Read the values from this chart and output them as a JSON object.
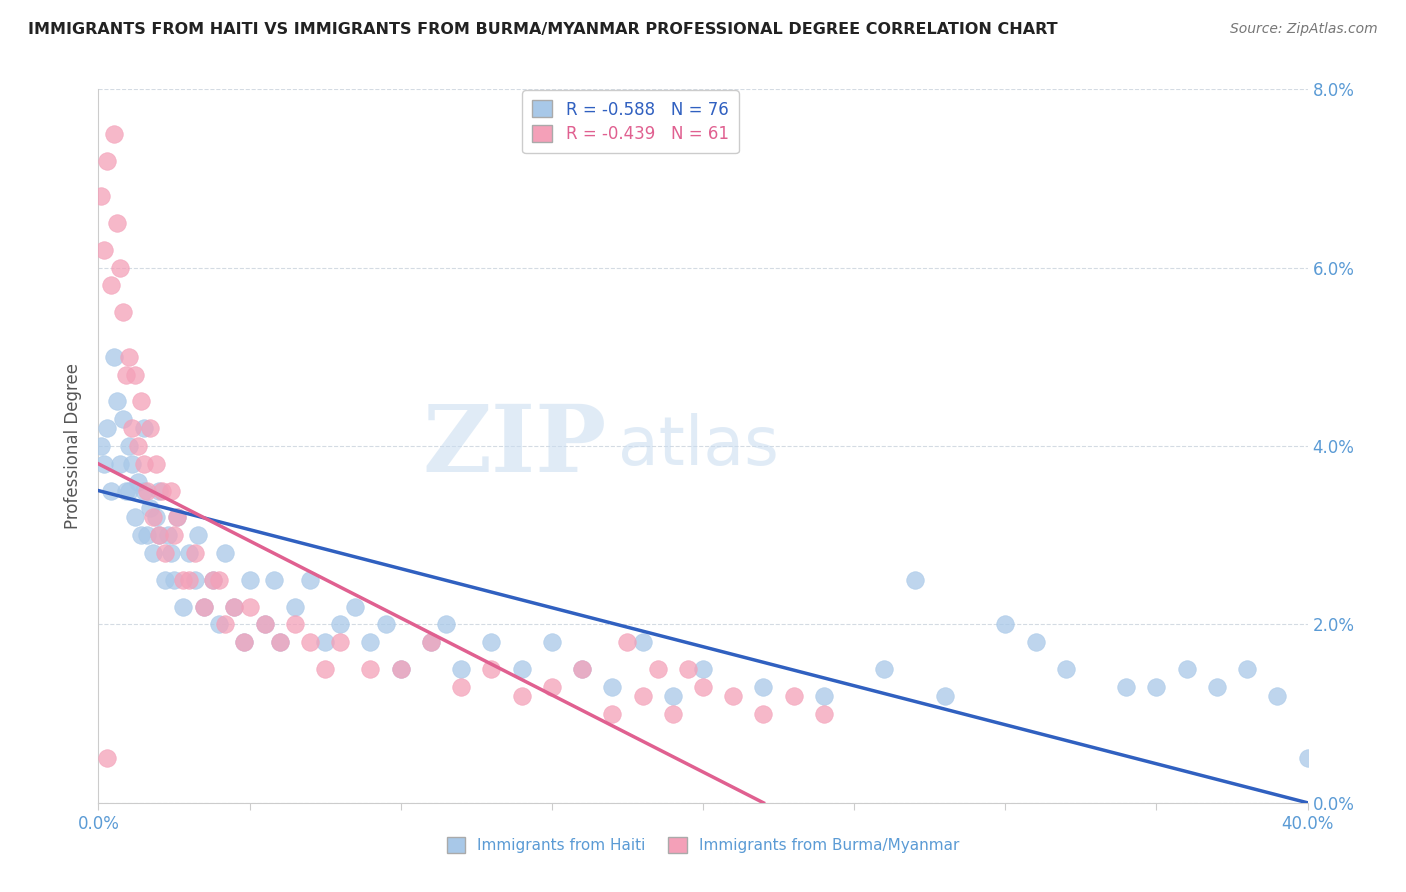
{
  "title": "IMMIGRANTS FROM HAITI VS IMMIGRANTS FROM BURMA/MYANMAR PROFESSIONAL DEGREE CORRELATION CHART",
  "source": "Source: ZipAtlas.com",
  "ylabel": "Professional Degree",
  "legend_haiti": "Immigrants from Haiti",
  "legend_burma": "Immigrants from Burma/Myanmar",
  "haiti_R": -0.588,
  "haiti_N": 76,
  "burma_R": -0.439,
  "burma_N": 61,
  "xlim": [
    0.0,
    0.4
  ],
  "ylim": [
    0.0,
    0.08
  ],
  "haiti_color": "#A8C8E8",
  "burma_color": "#F4A0B8",
  "haiti_line_color": "#3060C0",
  "burma_line_color": "#E06090",
  "background_color": "#FFFFFF",
  "watermark_zip": "ZIP",
  "watermark_atlas": "atlas",
  "haiti_x": [
    0.001,
    0.002,
    0.003,
    0.004,
    0.005,
    0.006,
    0.007,
    0.008,
    0.009,
    0.01,
    0.01,
    0.011,
    0.012,
    0.013,
    0.014,
    0.015,
    0.015,
    0.016,
    0.017,
    0.018,
    0.019,
    0.02,
    0.02,
    0.022,
    0.023,
    0.024,
    0.025,
    0.026,
    0.028,
    0.03,
    0.032,
    0.033,
    0.035,
    0.038,
    0.04,
    0.042,
    0.045,
    0.048,
    0.05,
    0.055,
    0.058,
    0.06,
    0.065,
    0.07,
    0.075,
    0.08,
    0.085,
    0.09,
    0.095,
    0.1,
    0.11,
    0.115,
    0.12,
    0.13,
    0.14,
    0.15,
    0.16,
    0.17,
    0.18,
    0.19,
    0.2,
    0.22,
    0.24,
    0.26,
    0.28,
    0.3,
    0.31,
    0.32,
    0.34,
    0.36,
    0.37,
    0.38,
    0.39,
    0.4,
    0.35,
    0.27
  ],
  "haiti_y": [
    0.04,
    0.038,
    0.042,
    0.035,
    0.05,
    0.045,
    0.038,
    0.043,
    0.035,
    0.04,
    0.035,
    0.038,
    0.032,
    0.036,
    0.03,
    0.035,
    0.042,
    0.03,
    0.033,
    0.028,
    0.032,
    0.03,
    0.035,
    0.025,
    0.03,
    0.028,
    0.025,
    0.032,
    0.022,
    0.028,
    0.025,
    0.03,
    0.022,
    0.025,
    0.02,
    0.028,
    0.022,
    0.018,
    0.025,
    0.02,
    0.025,
    0.018,
    0.022,
    0.025,
    0.018,
    0.02,
    0.022,
    0.018,
    0.02,
    0.015,
    0.018,
    0.02,
    0.015,
    0.018,
    0.015,
    0.018,
    0.015,
    0.013,
    0.018,
    0.012,
    0.015,
    0.013,
    0.012,
    0.015,
    0.012,
    0.02,
    0.018,
    0.015,
    0.013,
    0.015,
    0.013,
    0.015,
    0.012,
    0.005,
    0.013,
    0.025
  ],
  "burma_x": [
    0.001,
    0.002,
    0.003,
    0.004,
    0.005,
    0.006,
    0.007,
    0.008,
    0.009,
    0.01,
    0.011,
    0.012,
    0.013,
    0.014,
    0.015,
    0.016,
    0.017,
    0.018,
    0.019,
    0.02,
    0.021,
    0.022,
    0.024,
    0.025,
    0.026,
    0.028,
    0.03,
    0.032,
    0.035,
    0.038,
    0.04,
    0.042,
    0.045,
    0.048,
    0.05,
    0.055,
    0.06,
    0.065,
    0.07,
    0.075,
    0.08,
    0.09,
    0.1,
    0.11,
    0.12,
    0.13,
    0.14,
    0.15,
    0.16,
    0.17,
    0.175,
    0.18,
    0.185,
    0.19,
    0.195,
    0.2,
    0.21,
    0.22,
    0.23,
    0.24,
    0.003
  ],
  "burma_y": [
    0.068,
    0.062,
    0.072,
    0.058,
    0.075,
    0.065,
    0.06,
    0.055,
    0.048,
    0.05,
    0.042,
    0.048,
    0.04,
    0.045,
    0.038,
    0.035,
    0.042,
    0.032,
    0.038,
    0.03,
    0.035,
    0.028,
    0.035,
    0.03,
    0.032,
    0.025,
    0.025,
    0.028,
    0.022,
    0.025,
    0.025,
    0.02,
    0.022,
    0.018,
    0.022,
    0.02,
    0.018,
    0.02,
    0.018,
    0.015,
    0.018,
    0.015,
    0.015,
    0.018,
    0.013,
    0.015,
    0.012,
    0.013,
    0.015,
    0.01,
    0.018,
    0.012,
    0.015,
    0.01,
    0.015,
    0.013,
    0.012,
    0.01,
    0.012,
    0.01,
    0.005
  ],
  "haiti_line_x0": 0.0,
  "haiti_line_y0": 0.035,
  "haiti_line_x1": 0.4,
  "haiti_line_y1": 0.0,
  "burma_line_x0": 0.0,
  "burma_line_y0": 0.038,
  "burma_line_x1": 0.22,
  "burma_line_y1": 0.0
}
